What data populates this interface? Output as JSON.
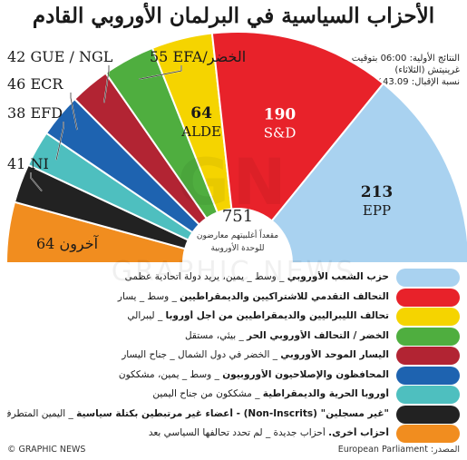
{
  "title": "الأحزاب السياسية في البرلمان الأوروبي القادم",
  "info": {
    "line1": "النتائج الأولية: 06:00 بتوقيت",
    "line2": "غرينيتش (الثلاثاء)",
    "line3": "نسبة الإقبال: 43.09%"
  },
  "chart_data": {
    "type": "pie",
    "total": 751,
    "center_label": "751",
    "center_note_1": "مقعداً أغلبيتهم معارضون",
    "center_note_2": "للوحدة الأوروبية",
    "slices": [
      {
        "key": "others",
        "seats": 64,
        "label": "آخرون 64",
        "color": "#f18d1f"
      },
      {
        "key": "ni",
        "seats": 41,
        "label": "41 NI",
        "color": "#222222"
      },
      {
        "key": "efd",
        "seats": 38,
        "label": "38 EFD",
        "color": "#4ebfbf"
      },
      {
        "key": "ecr",
        "seats": 46,
        "label": "46 ECR",
        "color": "#1e63b0"
      },
      {
        "key": "gue",
        "seats": 42,
        "label": "42 GUE / NGL",
        "color": "#b22433"
      },
      {
        "key": "greens",
        "seats": 55,
        "label": "55 EFA/الخضر",
        "color": "#4fae3f"
      },
      {
        "key": "alde",
        "seats": 64,
        "label_num": "64",
        "label_name": "ALDE",
        "color": "#f5d400"
      },
      {
        "key": "sd",
        "seats": 190,
        "label_num": "190",
        "label_name": "S&D",
        "color": "#e8222a"
      },
      {
        "key": "epp",
        "seats": 213,
        "label_num": "213",
        "label_name": "EPP",
        "color": "#a9d2f0"
      }
    ]
  },
  "legend": [
    {
      "color": "#a9d2f0",
      "bold": "حزب الشعب الأوروبي",
      "rest": " _ وسط _ يمين، يريد دولة اتحادية عظمى"
    },
    {
      "color": "#e8222a",
      "bold": "التحالف التقدمي للاشتراكيين والديمقراطيين",
      "rest": " _ وسط _ يسار"
    },
    {
      "color": "#f5d400",
      "bold": "تحالف الليبراليين والديمقراطيين من أجل أوروبا",
      "rest": " _ ليبرالي"
    },
    {
      "color": "#4fae3f",
      "bold": "الخضر / التحالف الأوروبي الحر",
      "rest": " _ بيئي، مستقل"
    },
    {
      "color": "#b22433",
      "bold": "اليسار الموحد الأوروبي",
      "rest": " _ الخضر في دول الشمال _ جناح اليسار"
    },
    {
      "color": "#1e63b0",
      "bold": "المحافظون والإصلاحيون الأوروبيون",
      "rest": " _ وسط _ يمين، مشككون"
    },
    {
      "color": "#4ebfbf",
      "bold": "أوروبا الحرية والديمقراطية",
      "rest": " _ مشككون من جناح اليمين"
    },
    {
      "color": "#222222",
      "bold": "\"غير مسجلين\" (Non-Inscrits) - أعضاء غير مرتبطين بكتلة سياسية",
      "rest": " _ اليمين المتطرف وأحزاب مشككة"
    },
    {
      "color": "#f18d1f",
      "bold": "أحزاب أخرى.",
      "rest": " أحزاب جديدة _ لم تحدد تحالفها السياسي بعد"
    }
  ],
  "footer": {
    "copyright": "© GRAPHIC NEWS",
    "source": "المصدر: European Parliament"
  }
}
